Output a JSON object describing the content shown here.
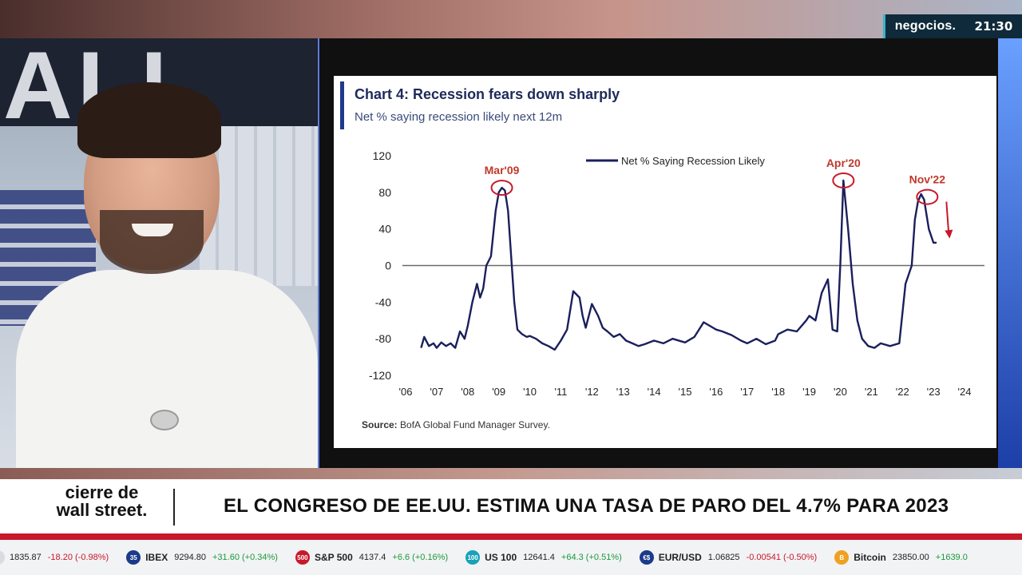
{
  "broadcast": {
    "brand": "negocios.",
    "clock": "21:30"
  },
  "presenter": {
    "background_letters": "ALL"
  },
  "chart_data": {
    "type": "line",
    "title": "Chart 4: Recession fears down sharply",
    "subtitle": "Net % saying recession likely next 12m",
    "source_label": "Source:",
    "source_text": "BofA Global Fund Manager Survey.",
    "legend": "Net % Saying Recession Likely",
    "legend_placement": "top-center",
    "ylim": [
      -120,
      120
    ],
    "yticks": [
      "120",
      "80",
      "40",
      "0",
      "-40",
      "-80",
      "-120"
    ],
    "xticks": [
      "'06",
      "'07",
      "'08",
      "'09",
      "'10",
      "'11",
      "'12",
      "'13",
      "'14",
      "'15",
      "'16",
      "'17",
      "'18",
      "'19",
      "'20",
      "'21",
      "'22",
      "'23",
      "'24"
    ],
    "xlim": [
      2006,
      2024
    ],
    "series": [
      {
        "name": "Net % Saying Recession Likely",
        "color": "#1a1f5c",
        "x": [
          2006.5,
          2006.6,
          2006.75,
          2006.9,
          2007.0,
          2007.15,
          2007.3,
          2007.45,
          2007.6,
          2007.75,
          2007.9,
          2008.0,
          2008.15,
          2008.3,
          2008.4,
          2008.5,
          2008.6,
          2008.75,
          2008.9,
          2009.0,
          2009.1,
          2009.2,
          2009.3,
          2009.4,
          2009.5,
          2009.6,
          2009.75,
          2009.9,
          2010.0,
          2010.2,
          2010.4,
          2010.6,
          2010.8,
          2011.0,
          2011.2,
          2011.4,
          2011.6,
          2011.7,
          2011.8,
          2012.0,
          2012.2,
          2012.35,
          2012.5,
          2012.7,
          2012.9,
          2013.1,
          2013.3,
          2013.5,
          2013.7,
          2014.0,
          2014.3,
          2014.6,
          2015.0,
          2015.3,
          2015.6,
          2015.9,
          2016.0,
          2016.2,
          2016.5,
          2016.8,
          2017.0,
          2017.3,
          2017.6,
          2017.9,
          2018.0,
          2018.3,
          2018.6,
          2018.9,
          2019.0,
          2019.2,
          2019.4,
          2019.6,
          2019.75,
          2019.9,
          2020.0,
          2020.1,
          2020.25,
          2020.4,
          2020.55,
          2020.7,
          2020.9,
          2021.1,
          2021.3,
          2021.6,
          2021.9,
          2022.1,
          2022.2,
          2022.3,
          2022.4,
          2022.5,
          2022.6,
          2022.7,
          2022.85,
          2023.0,
          2023.1
        ],
        "values": [
          -90,
          -78,
          -88,
          -85,
          -90,
          -84,
          -88,
          -85,
          -90,
          -72,
          -80,
          -66,
          -40,
          -20,
          -35,
          -25,
          0,
          10,
          60,
          80,
          85,
          82,
          60,
          10,
          -40,
          -70,
          -75,
          -78,
          -77,
          -80,
          -85,
          -88,
          -92,
          -82,
          -70,
          -28,
          -35,
          -55,
          -68,
          -42,
          -55,
          -68,
          -72,
          -78,
          -75,
          -82,
          -85,
          -88,
          -86,
          -82,
          -85,
          -80,
          -84,
          -78,
          -62,
          -68,
          -70,
          -72,
          -76,
          -82,
          -85,
          -80,
          -86,
          -82,
          -75,
          -70,
          -72,
          -60,
          -55,
          -60,
          -30,
          -15,
          -70,
          -72,
          0,
          93,
          40,
          -20,
          -60,
          -80,
          -88,
          -90,
          -85,
          -88,
          -85,
          -20,
          -10,
          0,
          50,
          70,
          78,
          72,
          40,
          25,
          25
        ]
      }
    ],
    "annotations": [
      {
        "label": "Mar'09",
        "x": 2009.1,
        "y": 85
      },
      {
        "label": "Apr'20",
        "x": 2020.1,
        "y": 93
      },
      {
        "label": "Nov'22",
        "x": 2022.8,
        "y": 75
      }
    ]
  },
  "lower_third": {
    "show_line1": "cierre de",
    "show_line2": "wall street.",
    "headline": "EL CONGRESO DE EE.UU. ESTIMA UNA TASA DE PARO DEL 4.7% PARA 2023"
  },
  "ticker": [
    {
      "icon": "",
      "icon_color": "#d8dbe0",
      "name": "",
      "value": "1835.87",
      "change": "-18.20 (-0.98%)",
      "negative": true
    },
    {
      "icon": "35",
      "icon_color": "#1a3a8a",
      "name": "IBEX",
      "value": "9294.80",
      "change": "+31.60 (+0.34%)",
      "negative": false
    },
    {
      "icon": "500",
      "icon_color": "#c8192a",
      "name": "S&P 500",
      "value": "4137.4",
      "change": "+6.6 (+0.16%)",
      "negative": false
    },
    {
      "icon": "100",
      "icon_color": "#17a2b8",
      "name": "US 100",
      "value": "12641.4",
      "change": "+64.3 (+0.51%)",
      "negative": false
    },
    {
      "icon": "€$",
      "icon_color": "#1a3a8a",
      "name": "EUR/USD",
      "value": "1.06825",
      "change": "-0.00541 (-0.50%)",
      "negative": true
    },
    {
      "icon": "B",
      "icon_color": "#f0a020",
      "name": "Bitcoin",
      "value": "23850.00",
      "change": "+1639.0",
      "negative": false
    }
  ]
}
